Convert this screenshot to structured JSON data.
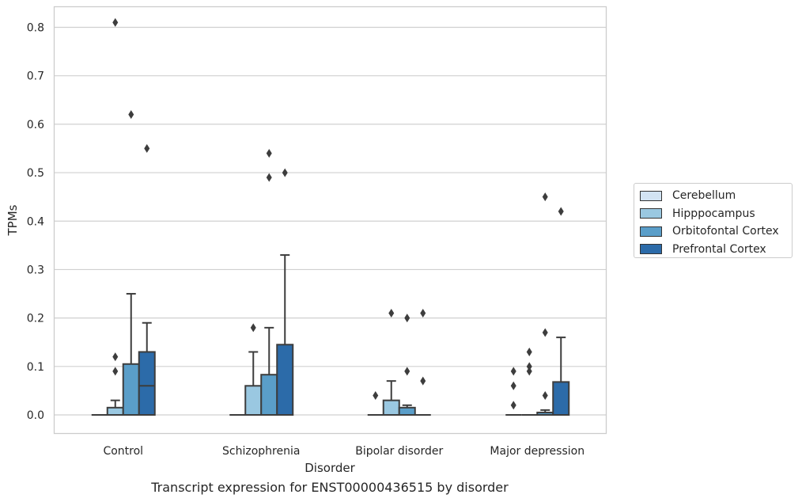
{
  "caption": "Transcript expression for ENST00000436515 by disorder",
  "chart_data": {
    "type": "box",
    "xlabel": "Disorder",
    "ylabel": "TPMs",
    "ylim": [
      -0.04,
      0.85
    ],
    "yticks": [
      0.0,
      0.1,
      0.2,
      0.3,
      0.4,
      0.5,
      0.6,
      0.7,
      0.8
    ],
    "ytick_labels": [
      "0.0",
      "0.1",
      "0.2",
      "0.3",
      "0.4",
      "0.5",
      "0.6",
      "0.7",
      "0.8"
    ],
    "grid": "horizontal",
    "legend_position": "right",
    "categories": [
      "Control",
      "Schizophrenia",
      "Bipolar disorder",
      "Major depression"
    ],
    "series": [
      {
        "name": "Cerebellum",
        "color": "#d2e3f3",
        "boxes": [
          {
            "q1": 0,
            "median": 0,
            "q3": 0,
            "whislo": 0,
            "whishi": 0,
            "fliers": []
          },
          {
            "q1": 0,
            "median": 0,
            "q3": 0,
            "whislo": 0,
            "whishi": 0,
            "fliers": []
          },
          {
            "q1": 0,
            "median": 0,
            "q3": 0,
            "whislo": 0,
            "whishi": 0,
            "fliers": [
              0.04
            ]
          },
          {
            "q1": 0,
            "median": 0,
            "q3": 0,
            "whislo": 0,
            "whishi": 0,
            "fliers": [
              0.02,
              0.06,
              0.09
            ]
          }
        ]
      },
      {
        "name": "Hipppocampus",
        "color": "#9ac8e1",
        "boxes": [
          {
            "q1": 0,
            "median": 0,
            "q3": 0.015,
            "whislo": 0,
            "whishi": 0.03,
            "fliers": [
              0.09,
              0.12,
              0.81
            ]
          },
          {
            "q1": 0,
            "median": 0,
            "q3": 0.06,
            "whislo": 0,
            "whishi": 0.13,
            "fliers": [
              0.18
            ]
          },
          {
            "q1": 0,
            "median": 0,
            "q3": 0.03,
            "whislo": 0,
            "whishi": 0.07,
            "fliers": [
              0.21
            ]
          },
          {
            "q1": 0,
            "median": 0,
            "q3": 0,
            "whislo": 0,
            "whishi": 0,
            "fliers": [
              0.09,
              0.1,
              0.13
            ]
          }
        ]
      },
      {
        "name": "Orbitofontal Cortex",
        "color": "#5a9ec9",
        "boxes": [
          {
            "q1": 0,
            "median": 0,
            "q3": 0.105,
            "whislo": 0,
            "whishi": 0.25,
            "fliers": [
              0.62
            ]
          },
          {
            "q1": 0,
            "median": 0,
            "q3": 0.083,
            "whislo": 0,
            "whishi": 0.18,
            "fliers": [
              0.49,
              0.54
            ]
          },
          {
            "q1": 0,
            "median": 0,
            "q3": 0.015,
            "whislo": 0,
            "whishi": 0.02,
            "fliers": [
              0.09,
              0.2
            ]
          },
          {
            "q1": 0,
            "median": 0,
            "q3": 0.005,
            "whislo": 0,
            "whishi": 0.01,
            "fliers": [
              0.04,
              0.17,
              0.45
            ]
          }
        ]
      },
      {
        "name": "Prefrontal Cortex",
        "color": "#2c6ba9",
        "boxes": [
          {
            "q1": 0,
            "median": 0.06,
            "q3": 0.13,
            "whislo": 0,
            "whishi": 0.19,
            "fliers": [
              0.55
            ]
          },
          {
            "q1": 0,
            "median": 0,
            "q3": 0.145,
            "whislo": 0,
            "whishi": 0.33,
            "fliers": [
              0.5
            ]
          },
          {
            "q1": 0,
            "median": 0,
            "q3": 0,
            "whislo": 0,
            "whishi": 0,
            "fliers": [
              0.07,
              0.21
            ]
          },
          {
            "q1": 0,
            "median": 0,
            "q3": 0.068,
            "whislo": 0,
            "whishi": 0.16,
            "fliers": [
              0.42
            ]
          }
        ]
      }
    ]
  }
}
